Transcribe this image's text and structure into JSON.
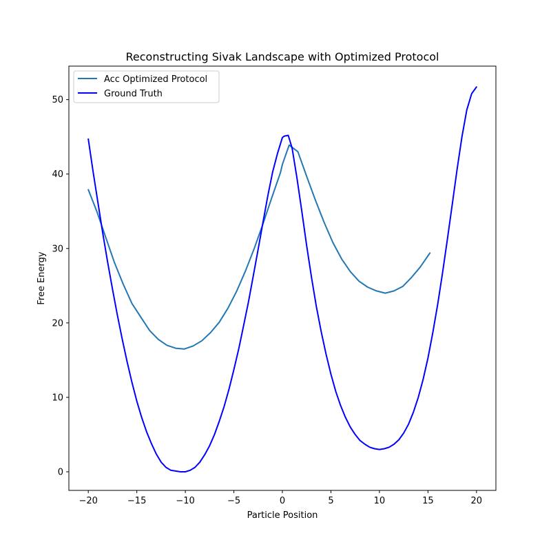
{
  "chart_data": {
    "type": "line",
    "title": "Reconstructing Sivak Landscape with Optimized Protocol",
    "xlabel": "Particle Position",
    "ylabel": "Free Energy",
    "xlim": [
      -22,
      22
    ],
    "ylim": [
      -2.5,
      54.5
    ],
    "xticks": [
      -20,
      -15,
      -10,
      -5,
      0,
      5,
      10,
      15,
      20
    ],
    "yticks": [
      0,
      10,
      20,
      30,
      40,
      50
    ],
    "grid": false,
    "legend_position": "upper-left",
    "series": [
      {
        "name": "Acc Optimized Protocol",
        "color": "#1f77b4",
        "x": [
          -20,
          -19.1,
          -18.2,
          -17.3,
          -16.4,
          -15.5,
          -14.6,
          -13.7,
          -12.8,
          -11.9,
          -11.0,
          -10.1,
          -9.2,
          -8.3,
          -7.4,
          -6.5,
          -5.6,
          -4.7,
          -3.8,
          -2.9,
          -2.0,
          -1.1,
          -0.2,
          0.0,
          0.7,
          1.6,
          2.5,
          3.4,
          4.3,
          5.2,
          6.1,
          7.0,
          7.9,
          8.8,
          9.7,
          10.6,
          11.5,
          12.4,
          13.3,
          14.2,
          15.2
        ],
        "y": [
          37.9,
          34.9,
          31.5,
          28.1,
          25.2,
          22.6,
          20.8,
          19.0,
          17.8,
          17.0,
          16.6,
          16.5,
          16.9,
          17.6,
          18.7,
          20.1,
          22.0,
          24.3,
          27.0,
          30.0,
          33.3,
          36.8,
          40.2,
          41.3,
          43.9,
          43.0,
          39.7,
          36.5,
          33.5,
          30.8,
          28.6,
          26.9,
          25.6,
          24.8,
          24.3,
          24.0,
          24.3,
          24.9,
          26.1,
          27.5,
          29.4
        ]
      },
      {
        "name": "Ground Truth",
        "color": "#0000ff",
        "x": [
          -20,
          -19.5,
          -19,
          -18.5,
          -18,
          -17.5,
          -17,
          -16.5,
          -16,
          -15.5,
          -15,
          -14.5,
          -14,
          -13.5,
          -13,
          -12.5,
          -12,
          -11.5,
          -11,
          -10.5,
          -10,
          -9.5,
          -9,
          -8.5,
          -8,
          -7.5,
          -7,
          -6.5,
          -6,
          -5.5,
          -5,
          -4.5,
          -4,
          -3.5,
          -3,
          -2.5,
          -2,
          -1.5,
          -1,
          -0.5,
          0,
          0.2,
          0.6,
          1,
          1.5,
          2,
          2.5,
          3,
          3.5,
          4,
          4.5,
          5,
          5.5,
          6,
          6.5,
          7,
          7.5,
          8,
          8.5,
          9,
          9.5,
          10,
          10.5,
          11,
          11.5,
          12,
          12.5,
          13,
          13.5,
          14,
          14.5,
          15,
          15.5,
          16,
          16.5,
          17,
          17.5,
          18,
          18.5,
          19,
          19.5,
          20
        ],
        "y": [
          44.7,
          40.3,
          36.1,
          32.0,
          28.1,
          24.5,
          21.0,
          17.8,
          14.8,
          12.0,
          9.5,
          7.3,
          5.4,
          3.8,
          2.4,
          1.3,
          0.6,
          0.2,
          0.1,
          0.0,
          0.0,
          0.2,
          0.6,
          1.3,
          2.3,
          3.5,
          5.0,
          6.8,
          8.8,
          11.1,
          13.7,
          16.5,
          19.6,
          22.8,
          26.3,
          29.9,
          33.5,
          37.1,
          40.3,
          42.8,
          44.9,
          45.1,
          45.2,
          43.5,
          39.5,
          35.0,
          30.4,
          26.1,
          22.2,
          18.8,
          15.8,
          13.1,
          10.8,
          8.9,
          7.3,
          6.0,
          5.0,
          4.2,
          3.7,
          3.3,
          3.1,
          3.0,
          3.1,
          3.3,
          3.7,
          4.3,
          5.2,
          6.4,
          8.0,
          10.0,
          12.4,
          15.3,
          18.7,
          22.5,
          26.7,
          31.2,
          35.9,
          40.6,
          45.0,
          48.6,
          50.8,
          51.7
        ]
      }
    ]
  }
}
